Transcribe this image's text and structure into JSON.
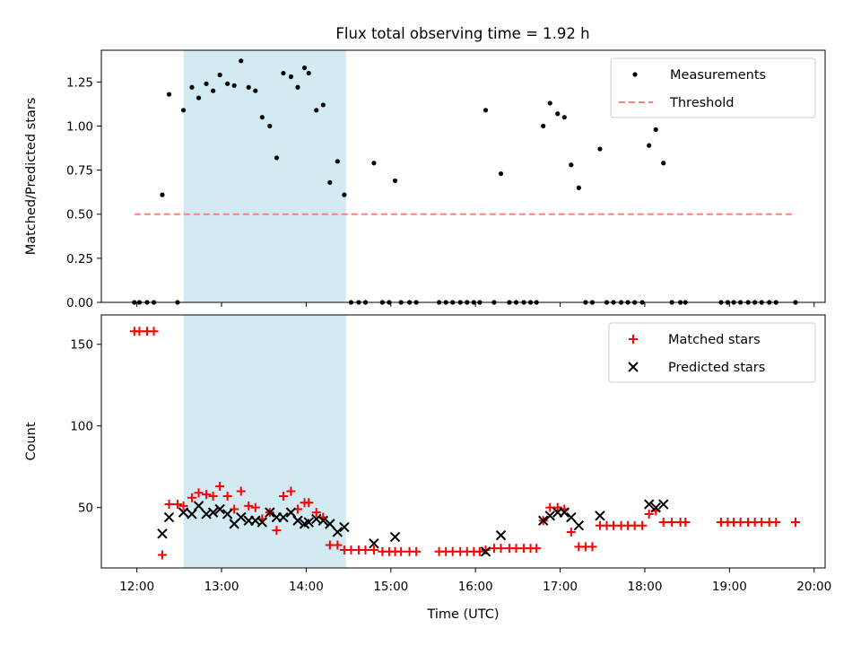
{
  "figure": {
    "title": "Flux total observing time = 1.92 h"
  },
  "chart_data": [
    {
      "type": "scatter",
      "panel": "top",
      "xlabel": "",
      "ylabel": "Matched/Predicted stars",
      "xlim": [
        11.58,
        20.13
      ],
      "ylim": [
        0,
        1.43
      ],
      "yticks": [
        0,
        0.25,
        0.5,
        0.75,
        1.0,
        1.25
      ],
      "ytick_labels": [
        "0.00",
        "0.25",
        "0.50",
        "0.75",
        "1.00",
        "1.25"
      ],
      "shaded_span": {
        "x": [
          12.55,
          14.47
        ],
        "color": "#add8e6"
      },
      "legend_position": "upper right",
      "grid": false,
      "series": [
        {
          "name": "Measurements",
          "kind": "points",
          "color": "#000000",
          "points": [
            [
              11.97,
              0
            ],
            [
              12.03,
              0
            ],
            [
              12.12,
              0
            ],
            [
              12.2,
              0
            ],
            [
              12.3,
              0.61
            ],
            [
              12.38,
              1.18
            ],
            [
              12.48,
              0
            ],
            [
              12.55,
              1.09
            ],
            [
              12.65,
              1.22
            ],
            [
              12.73,
              1.16
            ],
            [
              12.82,
              1.24
            ],
            [
              12.9,
              1.2
            ],
            [
              12.98,
              1.29
            ],
            [
              13.07,
              1.24
            ],
            [
              13.15,
              1.23
            ],
            [
              13.23,
              1.37
            ],
            [
              13.32,
              1.22
            ],
            [
              13.4,
              1.2
            ],
            [
              13.48,
              1.05
            ],
            [
              13.57,
              1.0
            ],
            [
              13.65,
              0.82
            ],
            [
              13.73,
              1.3
            ],
            [
              13.82,
              1.28
            ],
            [
              13.9,
              1.22
            ],
            [
              13.98,
              1.33
            ],
            [
              14.03,
              1.3
            ],
            [
              14.12,
              1.09
            ],
            [
              14.2,
              1.12
            ],
            [
              14.28,
              0.68
            ],
            [
              14.37,
              0.8
            ],
            [
              14.45,
              0.61
            ],
            [
              14.53,
              0
            ],
            [
              14.62,
              0
            ],
            [
              14.7,
              0
            ],
            [
              14.8,
              0.79
            ],
            [
              14.9,
              0
            ],
            [
              14.98,
              0
            ],
            [
              15.05,
              0.69
            ],
            [
              15.12,
              0
            ],
            [
              15.22,
              0
            ],
            [
              15.3,
              0
            ],
            [
              15.57,
              0
            ],
            [
              15.65,
              0
            ],
            [
              15.73,
              0
            ],
            [
              15.82,
              0
            ],
            [
              15.9,
              0
            ],
            [
              15.98,
              0
            ],
            [
              16.05,
              0
            ],
            [
              16.12,
              1.09
            ],
            [
              16.22,
              0
            ],
            [
              16.3,
              0.73
            ],
            [
              16.4,
              0
            ],
            [
              16.48,
              0
            ],
            [
              16.57,
              0
            ],
            [
              16.65,
              0
            ],
            [
              16.72,
              0
            ],
            [
              16.8,
              1.0
            ],
            [
              16.88,
              1.13
            ],
            [
              16.97,
              1.07
            ],
            [
              17.05,
              1.05
            ],
            [
              17.13,
              0.78
            ],
            [
              17.22,
              0.65
            ],
            [
              17.3,
              0
            ],
            [
              17.38,
              0
            ],
            [
              17.47,
              0.87
            ],
            [
              17.55,
              0
            ],
            [
              17.63,
              0
            ],
            [
              17.72,
              0
            ],
            [
              17.8,
              0
            ],
            [
              17.88,
              0
            ],
            [
              17.97,
              0
            ],
            [
              18.05,
              0.89
            ],
            [
              18.13,
              0.98
            ],
            [
              18.22,
              0.79
            ],
            [
              18.32,
              0
            ],
            [
              18.42,
              0
            ],
            [
              18.48,
              0
            ],
            [
              18.9,
              0
            ],
            [
              18.98,
              0
            ],
            [
              19.05,
              0
            ],
            [
              19.13,
              0
            ],
            [
              19.22,
              0
            ],
            [
              19.3,
              0
            ],
            [
              19.38,
              0
            ],
            [
              19.47,
              0
            ],
            [
              19.55,
              0
            ],
            [
              19.78,
              0
            ]
          ]
        },
        {
          "name": "Threshold",
          "kind": "dashed-line",
          "color": "#ff7f7f",
          "points": [
            [
              11.97,
              0.5
            ],
            [
              19.78,
              0.5
            ]
          ]
        }
      ]
    },
    {
      "type": "scatter",
      "panel": "bottom",
      "xlabel": "Time (UTC)",
      "ylabel": "Count",
      "xlim": [
        11.58,
        20.13
      ],
      "ylim": [
        13,
        168
      ],
      "xticks": [
        12,
        13,
        14,
        15,
        16,
        17,
        18,
        19,
        20
      ],
      "xtick_labels": [
        "12:00",
        "13:00",
        "14:00",
        "15:00",
        "16:00",
        "17:00",
        "18:00",
        "19:00",
        "20:00"
      ],
      "yticks": [
        50,
        100,
        150
      ],
      "ytick_labels": [
        "50",
        "100",
        "150"
      ],
      "shaded_span": {
        "x": [
          12.55,
          14.47
        ],
        "color": "#add8e6"
      },
      "legend_position": "upper right",
      "grid": false,
      "series": [
        {
          "name": "Matched stars",
          "kind": "plus",
          "color": "#ff0000",
          "points": [
            [
              11.97,
              158
            ],
            [
              12.03,
              158
            ],
            [
              12.12,
              158
            ],
            [
              12.2,
              158
            ],
            [
              12.3,
              21
            ],
            [
              12.38,
              52
            ],
            [
              12.48,
              52
            ],
            [
              12.55,
              51
            ],
            [
              12.65,
              56
            ],
            [
              12.73,
              59
            ],
            [
              12.82,
              58
            ],
            [
              12.9,
              57
            ],
            [
              12.98,
              63
            ],
            [
              13.07,
              57
            ],
            [
              13.15,
              49
            ],
            [
              13.23,
              60
            ],
            [
              13.32,
              51
            ],
            [
              13.4,
              50
            ],
            [
              13.48,
              43
            ],
            [
              13.57,
              47
            ],
            [
              13.65,
              36
            ],
            [
              13.73,
              57
            ],
            [
              13.82,
              60
            ],
            [
              13.9,
              49
            ],
            [
              13.98,
              53
            ],
            [
              14.03,
              53
            ],
            [
              14.12,
              47
            ],
            [
              14.2,
              44
            ],
            [
              14.28,
              27
            ],
            [
              14.37,
              27
            ],
            [
              14.45,
              24
            ],
            [
              14.53,
              24
            ],
            [
              14.62,
              24
            ],
            [
              14.7,
              24
            ],
            [
              14.8,
              24
            ],
            [
              14.9,
              23
            ],
            [
              14.98,
              23
            ],
            [
              15.05,
              23
            ],
            [
              15.12,
              23
            ],
            [
              15.22,
              23
            ],
            [
              15.3,
              23
            ],
            [
              15.57,
              23
            ],
            [
              15.65,
              23
            ],
            [
              15.73,
              23
            ],
            [
              15.82,
              23
            ],
            [
              15.9,
              23
            ],
            [
              15.98,
              23
            ],
            [
              16.05,
              23
            ],
            [
              16.12,
              24
            ],
            [
              16.22,
              25
            ],
            [
              16.3,
              25
            ],
            [
              16.4,
              25
            ],
            [
              16.48,
              25
            ],
            [
              16.57,
              25
            ],
            [
              16.65,
              25
            ],
            [
              16.72,
              25
            ],
            [
              16.8,
              42
            ],
            [
              16.88,
              50
            ],
            [
              16.97,
              50
            ],
            [
              17.05,
              49
            ],
            [
              17.13,
              35
            ],
            [
              17.22,
              26
            ],
            [
              17.3,
              26
            ],
            [
              17.38,
              26
            ],
            [
              17.47,
              39
            ],
            [
              17.55,
              39
            ],
            [
              17.63,
              39
            ],
            [
              17.72,
              39
            ],
            [
              17.8,
              39
            ],
            [
              17.88,
              39
            ],
            [
              17.97,
              39
            ],
            [
              18.05,
              46
            ],
            [
              18.13,
              48
            ],
            [
              18.22,
              41
            ],
            [
              18.32,
              41
            ],
            [
              18.42,
              41
            ],
            [
              18.48,
              41
            ],
            [
              18.9,
              41
            ],
            [
              18.98,
              41
            ],
            [
              19.05,
              41
            ],
            [
              19.13,
              41
            ],
            [
              19.22,
              41
            ],
            [
              19.3,
              41
            ],
            [
              19.38,
              41
            ],
            [
              19.47,
              41
            ],
            [
              19.55,
              41
            ],
            [
              19.78,
              41
            ]
          ]
        },
        {
          "name": "Predicted stars",
          "kind": "x",
          "color": "#000000",
          "points": [
            [
              12.3,
              34
            ],
            [
              12.38,
              44
            ],
            [
              12.55,
              47
            ],
            [
              12.65,
              46
            ],
            [
              12.73,
              51
            ],
            [
              12.82,
              46
            ],
            [
              12.9,
              47
            ],
            [
              12.98,
              49
            ],
            [
              13.07,
              46
            ],
            [
              13.15,
              40
            ],
            [
              13.23,
              44
            ],
            [
              13.32,
              42
            ],
            [
              13.4,
              42
            ],
            [
              13.48,
              41
            ],
            [
              13.57,
              47
            ],
            [
              13.65,
              44
            ],
            [
              13.73,
              44
            ],
            [
              13.82,
              47
            ],
            [
              13.9,
              42
            ],
            [
              13.98,
              40
            ],
            [
              14.03,
              41
            ],
            [
              14.12,
              43
            ],
            [
              14.2,
              42
            ],
            [
              14.28,
              40
            ],
            [
              14.37,
              35
            ],
            [
              14.45,
              38
            ],
            [
              14.8,
              28
            ],
            [
              15.05,
              32
            ],
            [
              16.12,
              23
            ],
            [
              16.3,
              33
            ],
            [
              16.8,
              42
            ],
            [
              16.88,
              45
            ],
            [
              16.97,
              47
            ],
            [
              17.05,
              47
            ],
            [
              17.13,
              44
            ],
            [
              17.22,
              39
            ],
            [
              17.47,
              45
            ],
            [
              18.05,
              52
            ],
            [
              18.13,
              50
            ],
            [
              18.22,
              52
            ]
          ]
        }
      ]
    }
  ]
}
